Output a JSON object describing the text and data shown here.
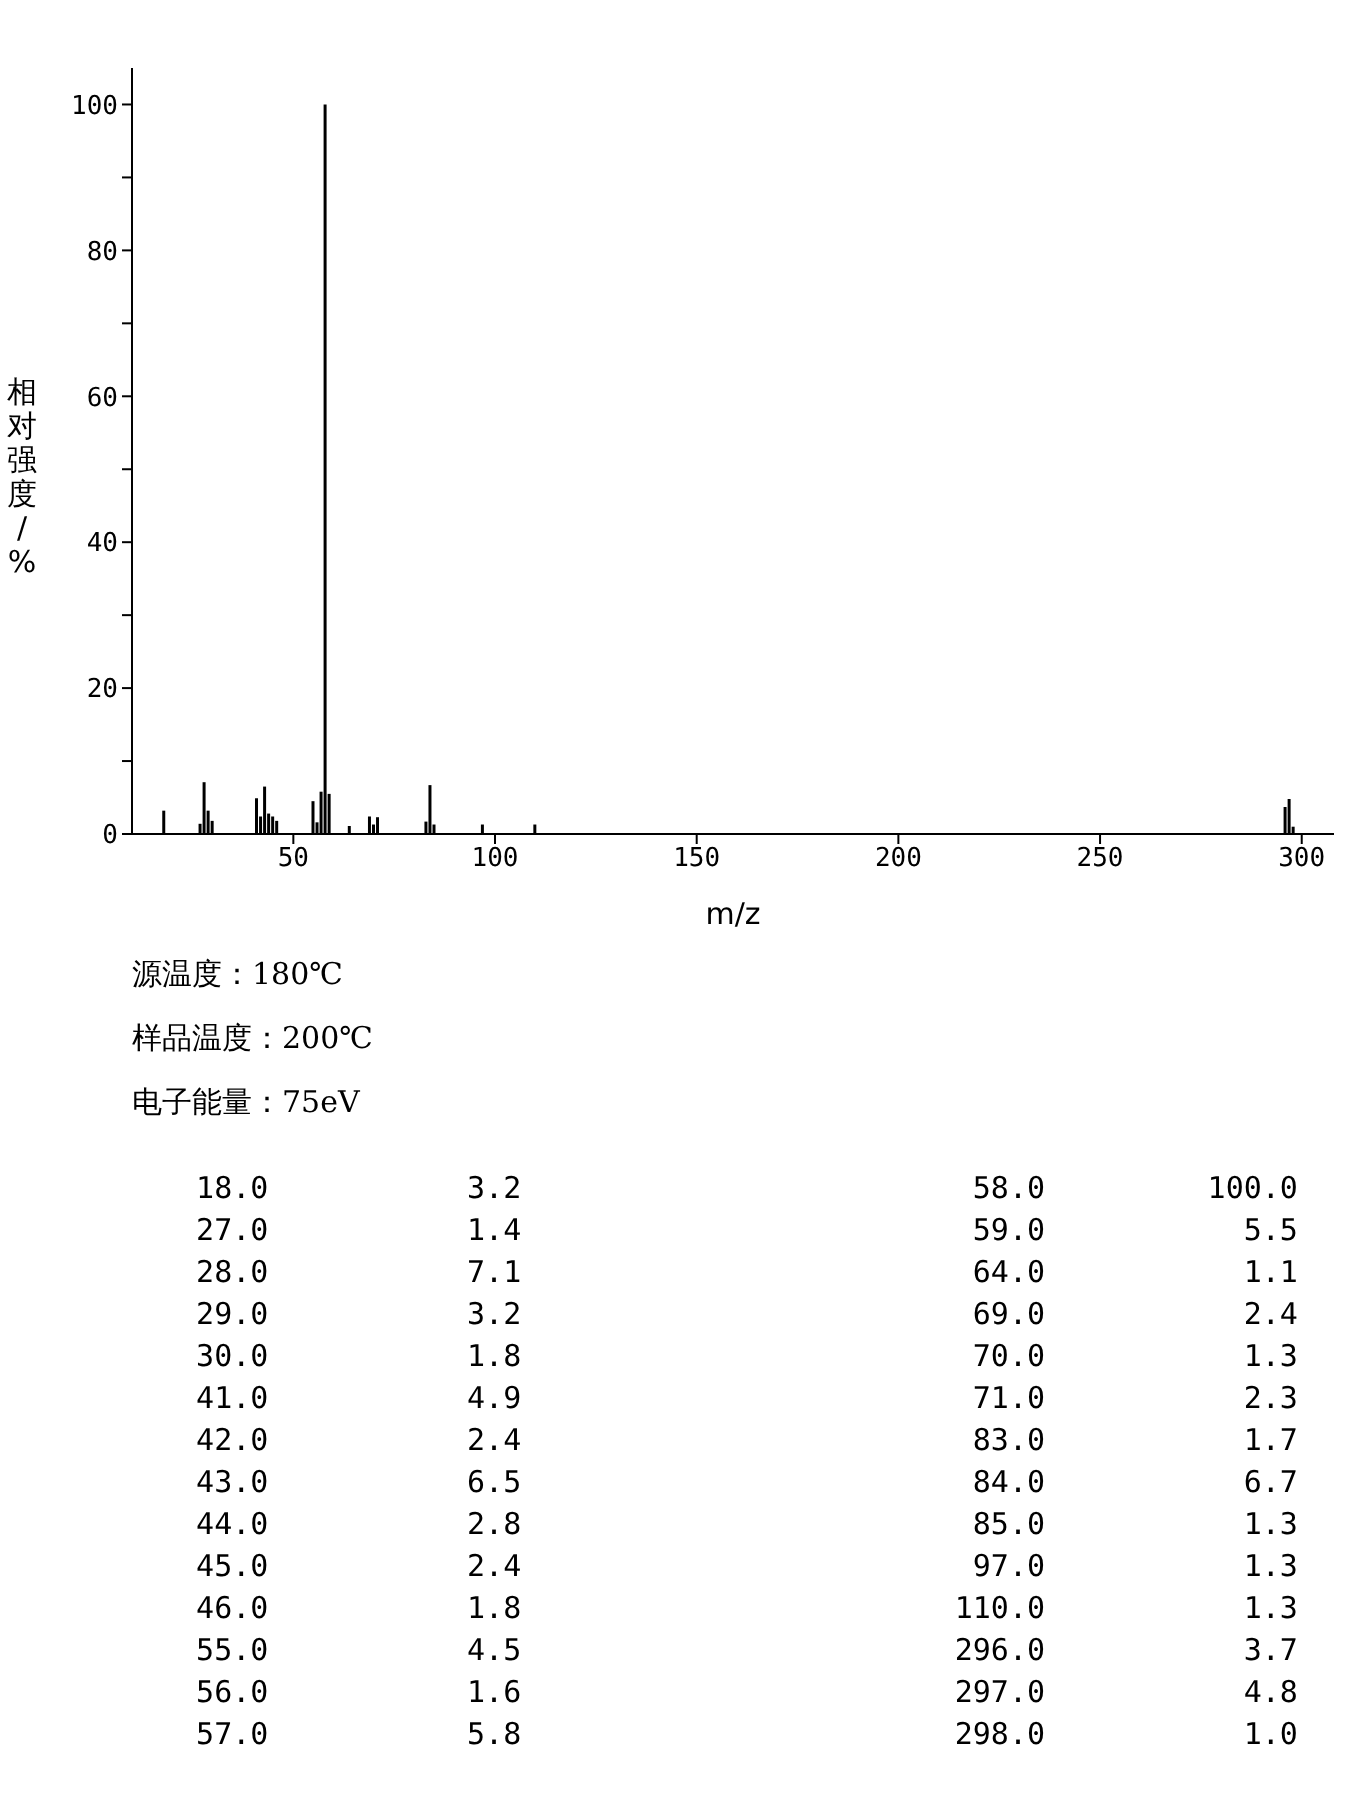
{
  "chart_data": [
    {
      "type": "bar",
      "xlabel": "m/z",
      "ylabel": "相对强度/%",
      "x": [
        18,
        27,
        28,
        29,
        30,
        41,
        42,
        43,
        44,
        45,
        46,
        55,
        56,
        57,
        58,
        59,
        64,
        69,
        70,
        71,
        83,
        84,
        85,
        97,
        110,
        296,
        297,
        298
      ],
      "values": [
        3.2,
        1.4,
        7.1,
        3.2,
        1.8,
        4.9,
        2.4,
        6.5,
        2.8,
        2.4,
        1.8,
        4.5,
        1.6,
        5.8,
        100.0,
        5.5,
        1.1,
        2.4,
        1.3,
        2.3,
        1.7,
        6.7,
        1.3,
        1.3,
        1.3,
        3.7,
        4.8,
        1.0
      ],
      "color": "#000000",
      "xlim": [
        10,
        308
      ],
      "xticks": [
        50,
        100,
        150,
        200,
        250,
        300
      ],
      "ylim": [
        0,
        105
      ],
      "yticks": [
        0,
        {
          "value": 10,
          "label": null
        },
        20,
        {
          "value": 30,
          "label": null
        },
        40,
        {
          "value": 50,
          "label": null
        },
        60,
        {
          "value": 70,
          "label": null
        },
        80,
        {
          "value": 90,
          "label": null
        },
        100
      ],
      "annotations": [
        "源温度：180℃",
        "样品温度：200℃",
        "电子能量：75eV"
      ]
    },
    {
      "type": "other",
      "annotations": [
        "18.0",
        "3.2",
        "58.0",
        "100.0",
        "27.0",
        "1.4",
        "59.0",
        "5.5",
        "28.0",
        "7.1",
        "64.0",
        "1.1",
        "29.0",
        "3.2",
        "69.0",
        "2.4",
        "30.0",
        "1.8",
        "70.0",
        "1.3",
        "41.0",
        "4.9",
        "71.0",
        "2.3",
        "42.0",
        "2.4",
        "83.0",
        "1.7",
        "43.0",
        "6.5",
        "84.0",
        "6.7",
        "44.0",
        "2.8",
        "85.0",
        "1.3",
        "45.0",
        "2.4",
        "97.0",
        "1.3",
        "46.0",
        "1.8",
        "110.0",
        "1.3",
        "55.0",
        "4.5",
        "296.0",
        "3.7",
        "56.0",
        "1.6",
        "297.0",
        "4.8",
        "57.0",
        "5.8",
        "298.0",
        "1.0"
      ]
    }
  ]
}
